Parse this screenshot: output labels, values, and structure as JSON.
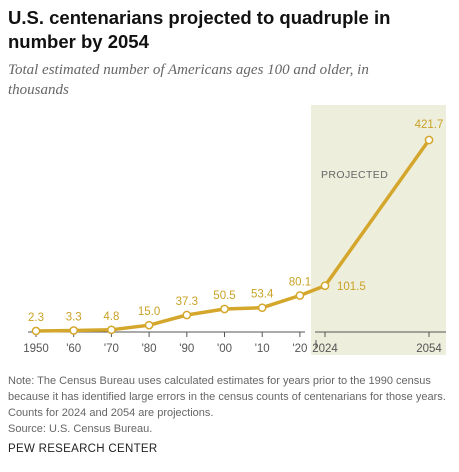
{
  "header": {
    "title": "U.S. centenarians projected to quadruple in number by 2054",
    "subtitle": "Total estimated number of Americans ages 100 and older, in thousands"
  },
  "footer": {
    "note": "Note: The Census Bureau uses calculated estimates for years prior to the 1990 census because it has identified large errors in the census counts of centenarians for those years. Counts for 2024 and 2054 are projections.",
    "source": "Source: U.S. Census Bureau.",
    "brand": "PEW RESEARCH CENTER"
  },
  "colors": {
    "line": "#d4a72c",
    "label": "#c9a227",
    "projected_band": "#eeeedd",
    "axis": "#555555",
    "tick_label": "#555555",
    "projected_label": "#666666"
  },
  "chart_data": {
    "type": "line",
    "x": [
      1950,
      1960,
      1970,
      1980,
      1990,
      2000,
      2010,
      2020,
      2024,
      2054
    ],
    "tick_labels": [
      "1950",
      "'60",
      "'70",
      "'80",
      "'90",
      "'00",
      "'10",
      "'20",
      "2024",
      "2054"
    ],
    "series": [
      {
        "values": [
          2.3,
          3.3,
          4.8,
          15.0,
          37.3,
          50.5,
          53.4,
          80.1,
          101.5,
          421.7
        ],
        "data_labels": [
          "2.3",
          "3.3",
          "4.8",
          "15.0",
          "37.3",
          "50.5",
          "53.4",
          "80.1",
          "101.5",
          "421.7"
        ]
      }
    ],
    "projected_label": "PROJECTED",
    "projected_from_index": 8,
    "ylim": [
      0,
      421.7
    ],
    "grid": false,
    "legend": "none",
    "note": "x-axis is not to scale: 2024 and 2054 are shown in a separate projected band"
  }
}
